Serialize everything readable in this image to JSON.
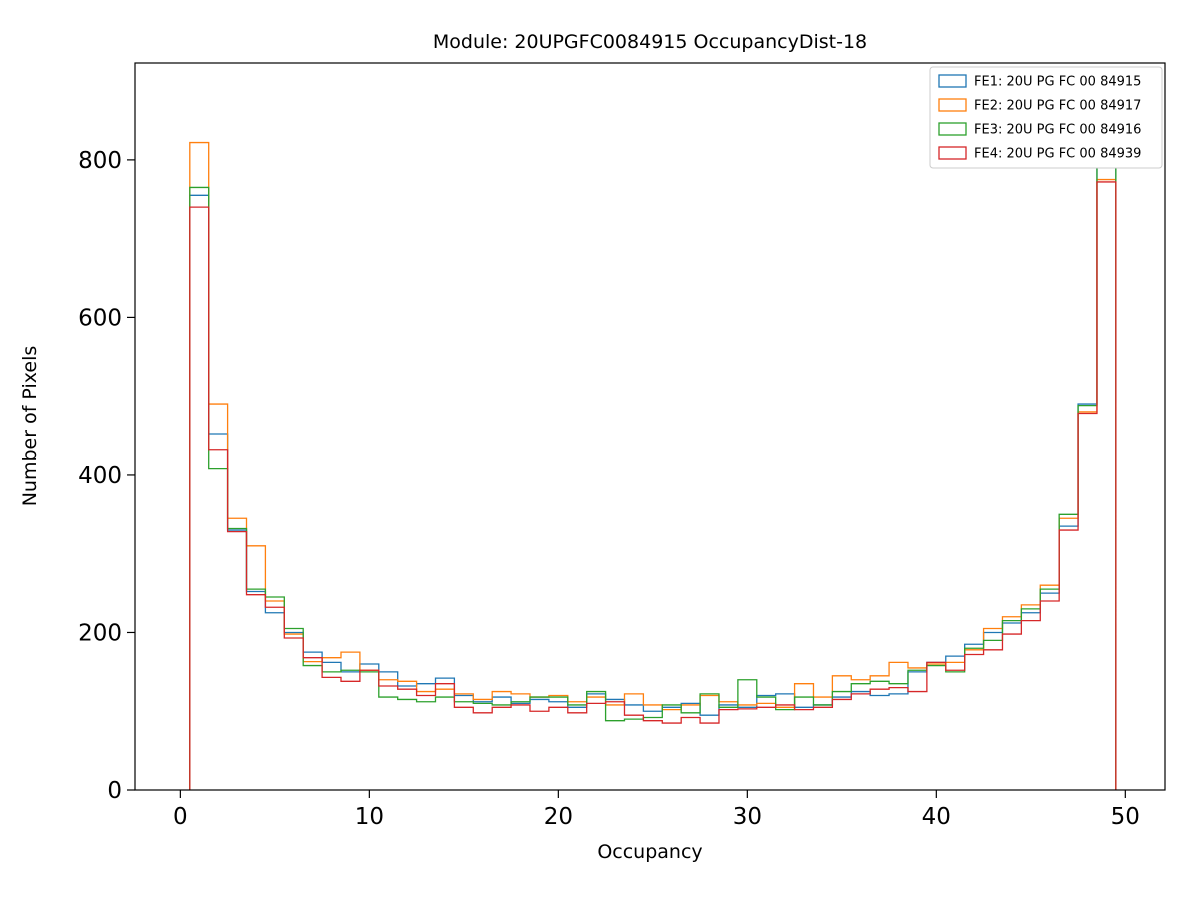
{
  "figure": {
    "background": "#ffffff",
    "plot_border_color": "#000000"
  },
  "chart_data": {
    "type": "bar",
    "subtype": "step-histogram",
    "title": "Module: 20UPGFC0084915 OccupancyDist-18",
    "xlabel": "Occupancy",
    "ylabel": "Number of Pixels",
    "xlim": [
      -2.4,
      52.1
    ],
    "ylim": [
      0,
      923
    ],
    "xticks": [
      0,
      10,
      20,
      30,
      40,
      50
    ],
    "yticks": [
      0,
      200,
      400,
      600,
      800
    ],
    "grid": false,
    "legend_position": "upper right",
    "bin_start": 0.5,
    "bin_width": 1,
    "bin_centers": [
      1,
      2,
      3,
      4,
      5,
      6,
      7,
      8,
      9,
      10,
      11,
      12,
      13,
      14,
      15,
      16,
      17,
      18,
      19,
      20,
      21,
      22,
      23,
      24,
      25,
      26,
      27,
      28,
      29,
      30,
      31,
      32,
      33,
      34,
      35,
      36,
      37,
      38,
      39,
      40,
      41,
      42,
      43,
      44,
      45,
      46,
      47,
      48,
      49
    ],
    "series": [
      {
        "name": "FE1: 20U PG FC 00 84915",
        "color": "#1f77b4",
        "values": [
          755,
          452,
          330,
          252,
          225,
          200,
          175,
          162,
          150,
          160,
          150,
          132,
          135,
          142,
          120,
          112,
          118,
          110,
          115,
          112,
          105,
          122,
          115,
          108,
          100,
          105,
          110,
          95,
          108,
          105,
          120,
          122,
          105,
          108,
          118,
          125,
          120,
          122,
          150,
          162,
          170,
          185,
          200,
          212,
          225,
          250,
          335,
          490,
          790
        ]
      },
      {
        "name": "FE2: 20U PG FC 00 84917",
        "color": "#ff7f0e",
        "values": [
          822,
          490,
          345,
          310,
          240,
          198,
          163,
          168,
          175,
          152,
          140,
          138,
          125,
          128,
          122,
          115,
          125,
          122,
          118,
          120,
          112,
          118,
          108,
          122,
          108,
          102,
          108,
          120,
          112,
          108,
          110,
          105,
          135,
          118,
          145,
          140,
          145,
          162,
          155,
          160,
          162,
          178,
          205,
          220,
          235,
          260,
          345,
          480,
          775
        ]
      },
      {
        "name": "FE3: 20U PG FC 00 84916",
        "color": "#2ca02c",
        "values": [
          765,
          408,
          332,
          255,
          245,
          205,
          158,
          150,
          152,
          150,
          118,
          115,
          112,
          118,
          112,
          110,
          108,
          112,
          118,
          118,
          108,
          125,
          88,
          90,
          92,
          108,
          98,
          122,
          105,
          140,
          118,
          102,
          118,
          108,
          125,
          135,
          138,
          135,
          152,
          158,
          150,
          180,
          190,
          215,
          230,
          255,
          350,
          488,
          810
        ]
      },
      {
        "name": "FE4: 20U PG FC 00 84939",
        "color": "#d62728",
        "values": [
          740,
          432,
          328,
          248,
          232,
          193,
          168,
          143,
          138,
          152,
          132,
          128,
          120,
          135,
          105,
          98,
          105,
          108,
          100,
          105,
          98,
          110,
          112,
          95,
          88,
          85,
          92,
          85,
          102,
          103,
          105,
          108,
          102,
          105,
          115,
          122,
          128,
          130,
          125,
          162,
          152,
          172,
          178,
          198,
          215,
          240,
          330,
          478,
          772
        ]
      }
    ]
  }
}
